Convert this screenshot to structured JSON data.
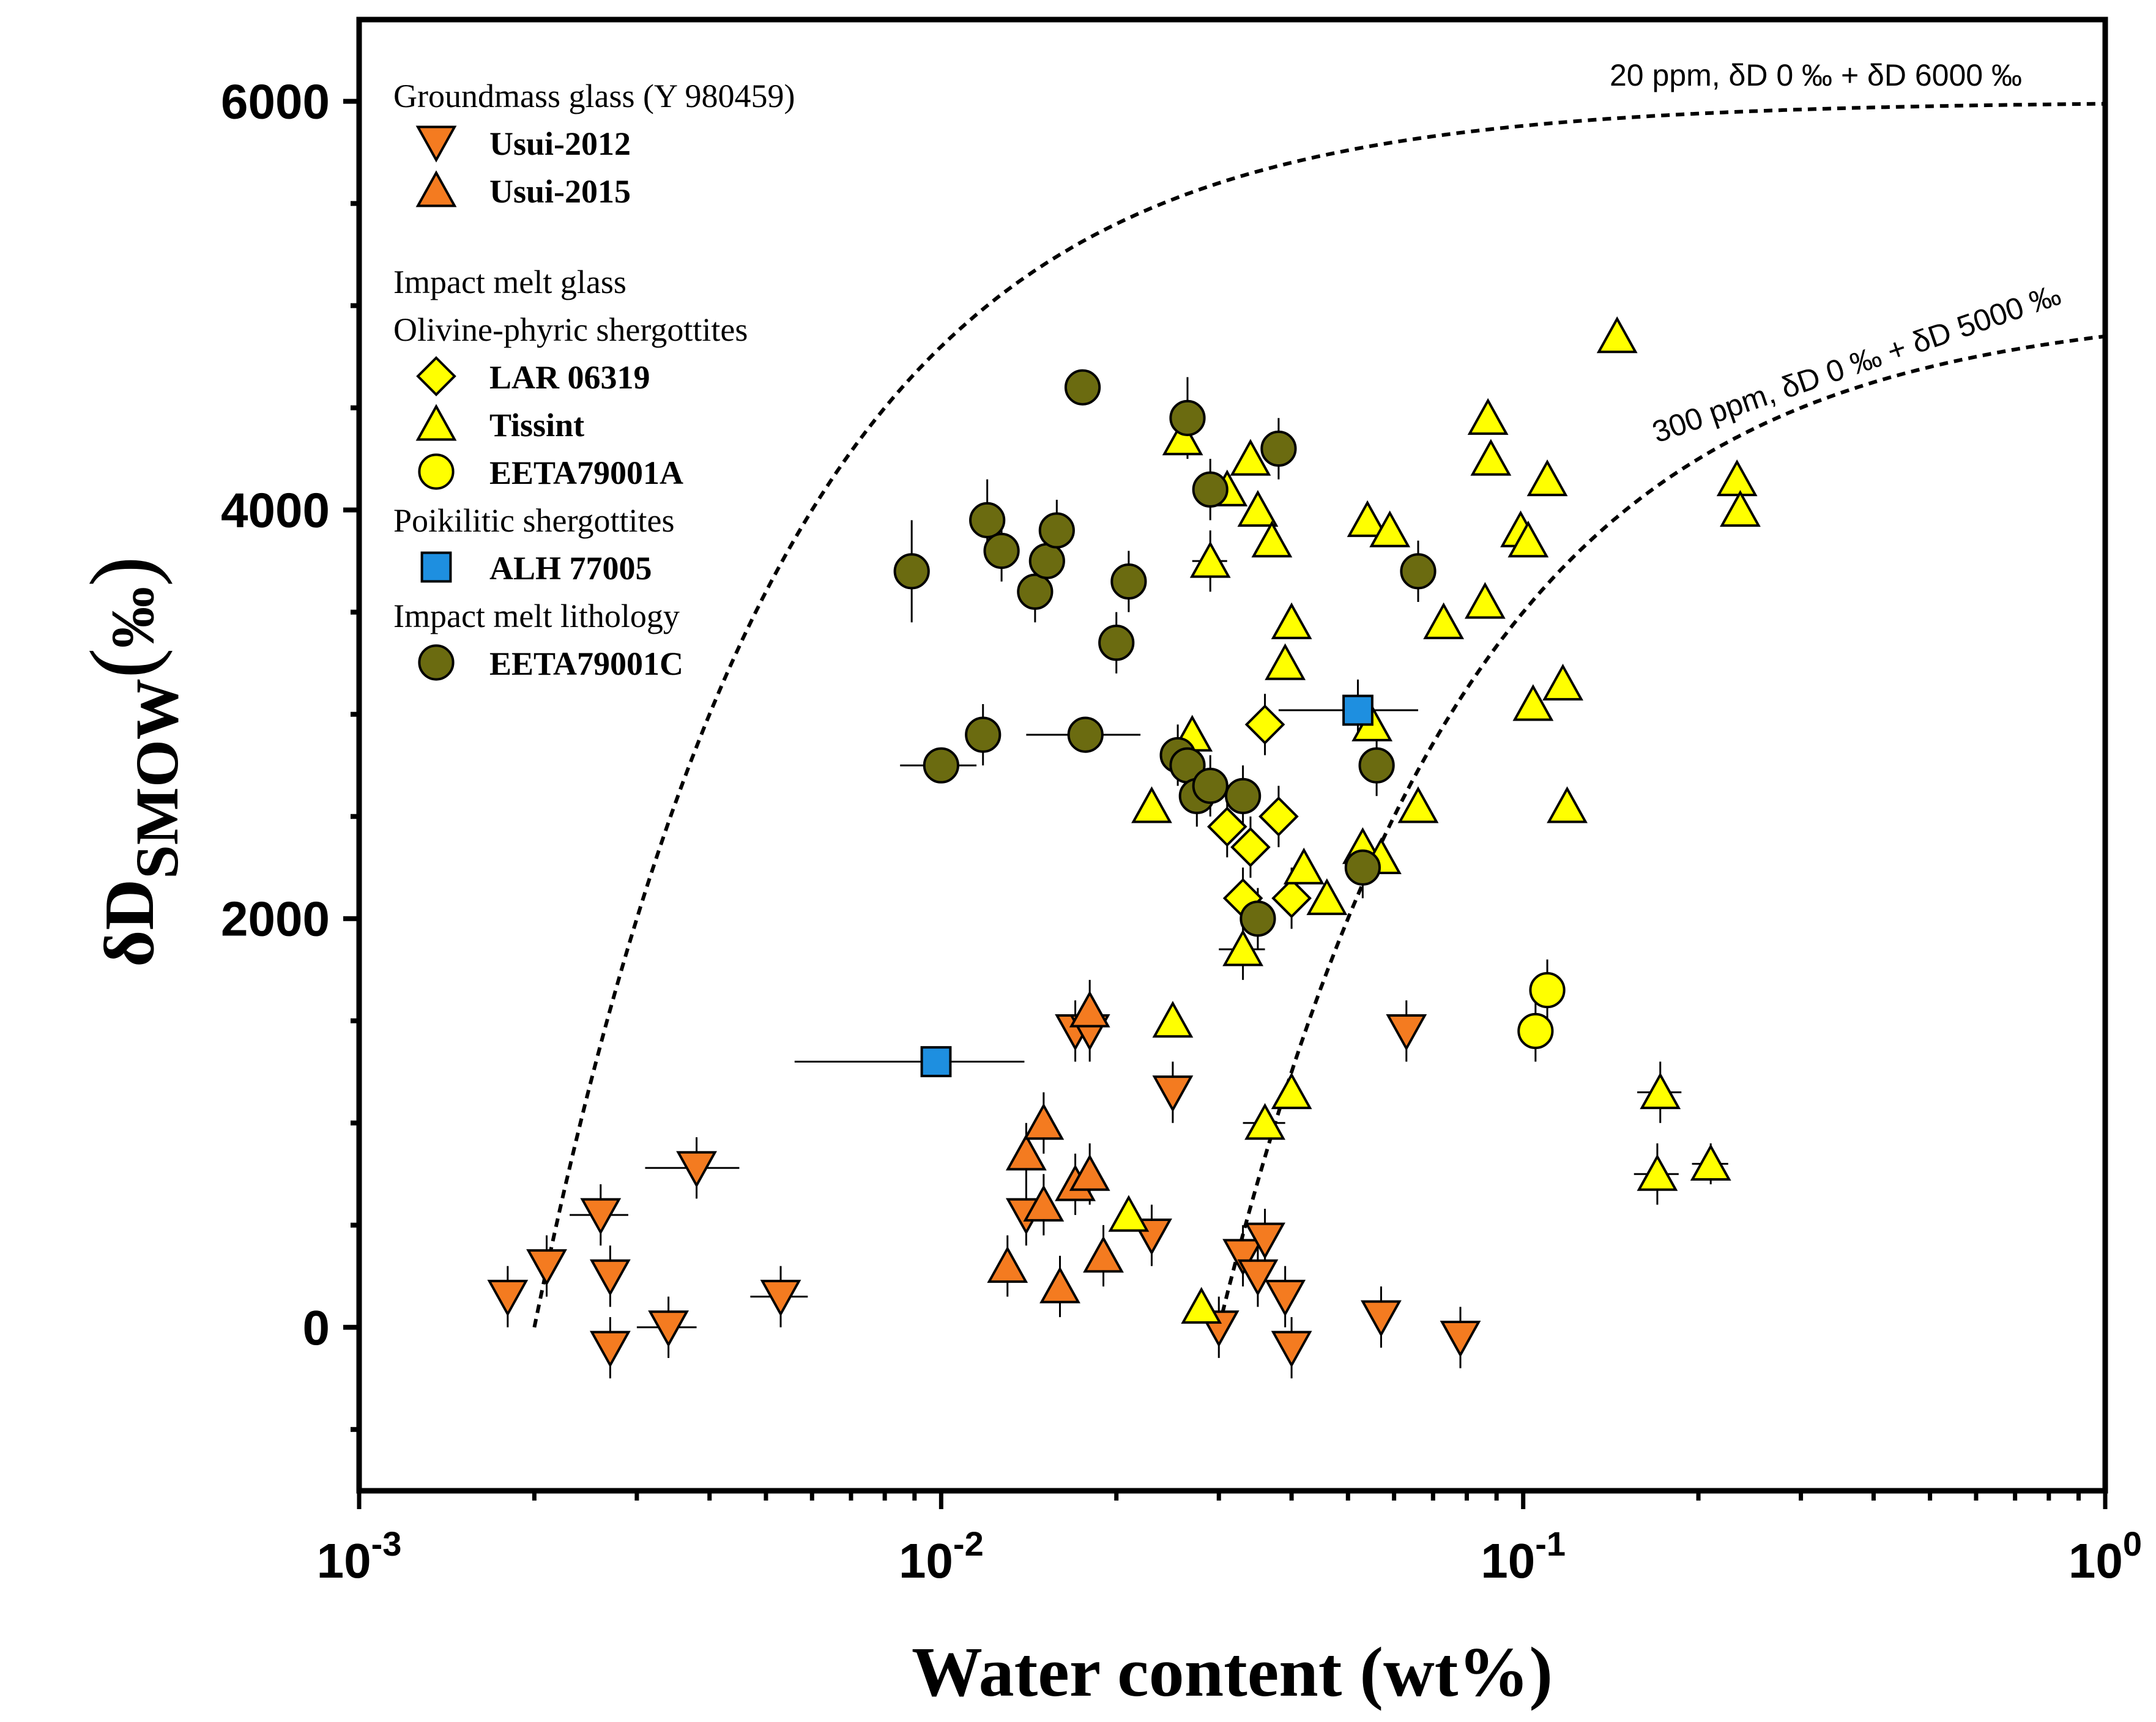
{
  "chart_data": {
    "type": "scatter",
    "xscale": "log",
    "xlabel": "Water content (wt%)",
    "ylabel_main": "δD",
    "ylabel_sub": "SMOW",
    "ylabel_unit": "‰",
    "xlim": [
      0.001,
      1.0
    ],
    "ylim": [
      -800,
      6400
    ],
    "xticks": [
      {
        "value": 0.001,
        "base": "10",
        "exp": "-3"
      },
      {
        "value": 0.01,
        "base": "10",
        "exp": "-2"
      },
      {
        "value": 0.1,
        "base": "10",
        "exp": "-1"
      },
      {
        "value": 1.0,
        "base": "10",
        "exp": "0"
      }
    ],
    "yticks": [
      {
        "value": 0,
        "label": "0"
      },
      {
        "value": 2000,
        "label": "2000"
      },
      {
        "value": 4000,
        "label": "4000"
      },
      {
        "value": 6000,
        "label": "6000"
      }
    ],
    "legend": [
      {
        "type": "header",
        "text": "Groundmass glass (Y 980459)"
      },
      {
        "type": "entry",
        "text": "Usui-2012",
        "marker": "tri-down",
        "color": "#F47B20"
      },
      {
        "type": "entry",
        "text": "Usui-2015",
        "marker": "tri-up",
        "color": "#F47B20"
      },
      {
        "type": "gap"
      },
      {
        "type": "header",
        "text": "Impact melt glass"
      },
      {
        "type": "header",
        "text": "Olivine-phyric shergottites"
      },
      {
        "type": "entry",
        "text": "LAR 06319",
        "marker": "diamond",
        "color": "#FFFF00"
      },
      {
        "type": "entry",
        "text": "Tissint",
        "marker": "tri-up",
        "color": "#FFFF00"
      },
      {
        "type": "entry",
        "text": "EETA79001A",
        "marker": "circle",
        "color": "#FFFF00"
      },
      {
        "type": "header",
        "text": "Poikilitic shergottites"
      },
      {
        "type": "entry",
        "text": "ALH 77005",
        "marker": "square",
        "color": "#1E8FE0"
      },
      {
        "type": "header",
        "text": "Impact melt lithology"
      },
      {
        "type": "entry",
        "text": "EETA79001C",
        "marker": "circle",
        "color": "#6B6B10"
      }
    ],
    "curves": [
      {
        "name": "20 ppm",
        "label": "20 ppm, δD 0 ‰ + δD 6000 ‰",
        "c0": 0.002,
        "dD": 6000
      },
      {
        "name": "300 ppm",
        "label": "300 ppm, δD 0 ‰ + δD 5000 ‰",
        "c0": 0.03,
        "dD": 5000
      }
    ],
    "series": [
      {
        "name": "Usui-2012",
        "marker": "tri-down",
        "color": "#F47B20",
        "points": [
          {
            "x": 0.0018,
            "y": 150,
            "ey": 150
          },
          {
            "x": 0.0021,
            "y": 300,
            "ey": 150
          },
          {
            "x": 0.0026,
            "y": 550,
            "ey": 150,
            "ex": 0.0003
          },
          {
            "x": 0.0027,
            "y": 250,
            "ey": 150
          },
          {
            "x": 0.0027,
            "y": -100,
            "ey": 150
          },
          {
            "x": 0.0034,
            "y": 0,
            "ey": 150,
            "ex": 0.0004
          },
          {
            "x": 0.0038,
            "y": 780,
            "ey": 150,
            "ex": 0.0007
          },
          {
            "x": 0.0053,
            "y": 150,
            "ey": 150,
            "ex": 0.0006
          },
          {
            "x": 0.014,
            "y": 550,
            "ey": 150
          },
          {
            "x": 0.017,
            "y": 1450,
            "ey": 150
          },
          {
            "x": 0.018,
            "y": 1450,
            "ey": 150
          },
          {
            "x": 0.023,
            "y": 450,
            "ey": 150
          },
          {
            "x": 0.025,
            "y": 1150,
            "ey": 150
          },
          {
            "x": 0.03,
            "y": 0,
            "ey": 150
          },
          {
            "x": 0.033,
            "y": 350,
            "ey": 150
          },
          {
            "x": 0.035,
            "y": 250,
            "ey": 150
          },
          {
            "x": 0.036,
            "y": 430,
            "ey": 150
          },
          {
            "x": 0.039,
            "y": 150,
            "ey": 150
          },
          {
            "x": 0.04,
            "y": -100,
            "ey": 150
          },
          {
            "x": 0.057,
            "y": 50,
            "ey": 150
          },
          {
            "x": 0.063,
            "y": 1450,
            "ey": 150
          },
          {
            "x": 0.078,
            "y": -50,
            "ey": 150
          }
        ]
      },
      {
        "name": "Usui-2015",
        "marker": "tri-up",
        "color": "#F47B20",
        "points": [
          {
            "x": 0.013,
            "y": 300,
            "ey": 150
          },
          {
            "x": 0.014,
            "y": 850,
            "ey": 150
          },
          {
            "x": 0.015,
            "y": 600,
            "ey": 150
          },
          {
            "x": 0.015,
            "y": 1000,
            "ey": 150
          },
          {
            "x": 0.016,
            "y": 200,
            "ey": 150
          },
          {
            "x": 0.017,
            "y": 700,
            "ey": 150
          },
          {
            "x": 0.018,
            "y": 750,
            "ey": 150
          },
          {
            "x": 0.018,
            "y": 1550,
            "ey": 150
          },
          {
            "x": 0.019,
            "y": 350,
            "ey": 150
          }
        ]
      },
      {
        "name": "LAR 06319",
        "marker": "diamond",
        "color": "#FFFF00",
        "points": [
          {
            "x": 0.031,
            "y": 2450,
            "ey": 150
          },
          {
            "x": 0.033,
            "y": 2100,
            "ey": 150
          },
          {
            "x": 0.034,
            "y": 2350,
            "ey": 150
          },
          {
            "x": 0.036,
            "y": 2950,
            "ey": 150
          },
          {
            "x": 0.038,
            "y": 2500,
            "ey": 150
          },
          {
            "x": 0.04,
            "y": 2100,
            "ey": 150
          }
        ]
      },
      {
        "name": "Tissint",
        "marker": "tri-up",
        "color": "#FFFF00",
        "points": [
          {
            "x": 0.021,
            "y": 550
          },
          {
            "x": 0.023,
            "y": 2550
          },
          {
            "x": 0.025,
            "y": 1500
          },
          {
            "x": 0.026,
            "y": 4350
          },
          {
            "x": 0.027,
            "y": 2900
          },
          {
            "x": 0.028,
            "y": 100
          },
          {
            "x": 0.029,
            "y": 3750,
            "ey": 150,
            "ex": 0.002
          },
          {
            "x": 0.031,
            "y": 4100
          },
          {
            "x": 0.033,
            "y": 1850,
            "ey": 150,
            "ex": 0.003
          },
          {
            "x": 0.034,
            "y": 4250
          },
          {
            "x": 0.035,
            "y": 4000
          },
          {
            "x": 0.036,
            "y": 1000,
            "ex": 0.003
          },
          {
            "x": 0.037,
            "y": 3850
          },
          {
            "x": 0.039,
            "y": 3250
          },
          {
            "x": 0.04,
            "y": 3450
          },
          {
            "x": 0.04,
            "y": 1150
          },
          {
            "x": 0.042,
            "y": 2250
          },
          {
            "x": 0.046,
            "y": 2100
          },
          {
            "x": 0.053,
            "y": 2350
          },
          {
            "x": 0.054,
            "y": 3950
          },
          {
            "x": 0.055,
            "y": 2950
          },
          {
            "x": 0.057,
            "y": 2300
          },
          {
            "x": 0.059,
            "y": 3900
          },
          {
            "x": 0.066,
            "y": 2550
          },
          {
            "x": 0.073,
            "y": 3450
          },
          {
            "x": 0.086,
            "y": 3550
          },
          {
            "x": 0.087,
            "y": 4450
          },
          {
            "x": 0.088,
            "y": 4250
          },
          {
            "x": 0.099,
            "y": 3900
          },
          {
            "x": 0.102,
            "y": 3850
          },
          {
            "x": 0.104,
            "y": 3050
          },
          {
            "x": 0.11,
            "y": 4150
          },
          {
            "x": 0.117,
            "y": 3150
          },
          {
            "x": 0.119,
            "y": 2550
          },
          {
            "x": 0.145,
            "y": 4850
          },
          {
            "x": 0.17,
            "y": 750,
            "ey": 150,
            "ex": 0.015
          },
          {
            "x": 0.172,
            "y": 1150,
            "ey": 150,
            "ex": 0.015
          },
          {
            "x": 0.21,
            "y": 800,
            "ey": 100,
            "ex": 0.015
          },
          {
            "x": 0.233,
            "y": 4150
          },
          {
            "x": 0.236,
            "y": 4000
          }
        ]
      },
      {
        "name": "EETA79001A",
        "marker": "circle",
        "color": "#FFFF00",
        "points": [
          {
            "x": 0.105,
            "y": 1450,
            "ey": 150
          },
          {
            "x": 0.11,
            "y": 1650,
            "ey": 150
          }
        ]
      },
      {
        "name": "ALH 77005",
        "marker": "square",
        "color": "#1E8FE0",
        "points": [
          {
            "x": 0.0098,
            "y": 1300,
            "ey": 0,
            "exlo": 0.0056,
            "exhi": 0.0139
          },
          {
            "x": 0.052,
            "y": 3020,
            "ey": 150,
            "exlo": 0.038,
            "exhi": 0.066
          }
        ]
      },
      {
        "name": "EETA79001C",
        "marker": "circle",
        "color": "#6B6B10",
        "points": [
          {
            "x": 0.0089,
            "y": 3700,
            "ey": 250
          },
          {
            "x": 0.01,
            "y": 2750,
            "ey": 0,
            "ex": 0.0015
          },
          {
            "x": 0.012,
            "y": 3950,
            "ey": 200
          },
          {
            "x": 0.0118,
            "y": 2900,
            "ey": 150
          },
          {
            "x": 0.0127,
            "y": 3800,
            "ey": 150
          },
          {
            "x": 0.0145,
            "y": 3600,
            "ey": 150
          },
          {
            "x": 0.0152,
            "y": 3750,
            "ey": 150
          },
          {
            "x": 0.0158,
            "y": 3900,
            "ey": 150
          },
          {
            "x": 0.0175,
            "y": 4600,
            "ey": 0
          },
          {
            "x": 0.0177,
            "y": 2900,
            "ey": 0,
            "exlo": 0.014,
            "exhi": 0.022
          },
          {
            "x": 0.02,
            "y": 3350,
            "ey": 150
          },
          {
            "x": 0.021,
            "y": 3650,
            "ey": 150
          },
          {
            "x": 0.0255,
            "y": 2800,
            "ey": 150
          },
          {
            "x": 0.0265,
            "y": 4450,
            "ey": 200
          },
          {
            "x": 0.0265,
            "y": 2750,
            "ey": 150
          },
          {
            "x": 0.0275,
            "y": 2600,
            "ey": 150
          },
          {
            "x": 0.029,
            "y": 4100,
            "ey": 150
          },
          {
            "x": 0.029,
            "y": 2650,
            "ey": 150
          },
          {
            "x": 0.033,
            "y": 2600,
            "ey": 150
          },
          {
            "x": 0.035,
            "y": 2000,
            "ey": 150
          },
          {
            "x": 0.038,
            "y": 4300,
            "ey": 150
          },
          {
            "x": 0.053,
            "y": 2250,
            "ey": 150
          },
          {
            "x": 0.056,
            "y": 2750,
            "ey": 150
          },
          {
            "x": 0.066,
            "y": 3700,
            "ey": 150
          }
        ]
      }
    ]
  }
}
